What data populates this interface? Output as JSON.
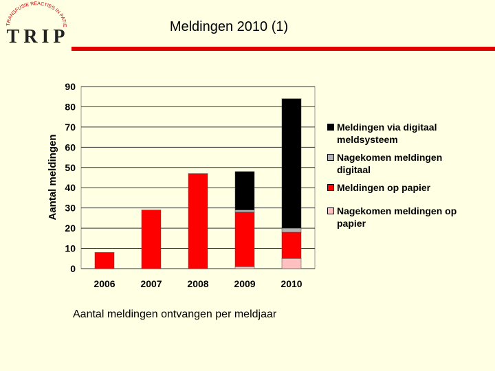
{
  "header": {
    "title": "Meldingen 2010 (1)",
    "logo": {
      "text": "TRIP",
      "arc_text": "TRANSFUSIE REACTIES IN PATIENTEN"
    }
  },
  "chart_data": {
    "type": "stacked_bar",
    "y_label": "Aantal meldingen",
    "caption": "Aantal meldingen ontvangen per meldjaar",
    "categories": [
      "2006",
      "2007",
      "2008",
      "2009",
      "2010"
    ],
    "series": [
      {
        "name": "Meldingen via digitaal meldsysteem",
        "color": "#000000",
        "values": [
          0,
          0,
          0,
          19,
          64
        ]
      },
      {
        "name": "Nagekomen meldingen digitaal",
        "color": "#b3b3b3",
        "values": [
          0,
          0,
          0,
          1,
          2
        ]
      },
      {
        "name": "Meldingen op papier",
        "color": "#ff0000",
        "values": [
          8,
          29,
          47,
          27,
          13
        ]
      },
      {
        "name": "Nagekomen meldingen op papier",
        "color": "#ffc0c0",
        "values": [
          0,
          0,
          0,
          1,
          5
        ]
      }
    ],
    "ylim": [
      0,
      90
    ],
    "yticks": [
      0,
      10,
      20,
      30,
      40,
      50,
      60,
      70,
      80,
      90
    ],
    "grid": true,
    "legend": "right"
  }
}
